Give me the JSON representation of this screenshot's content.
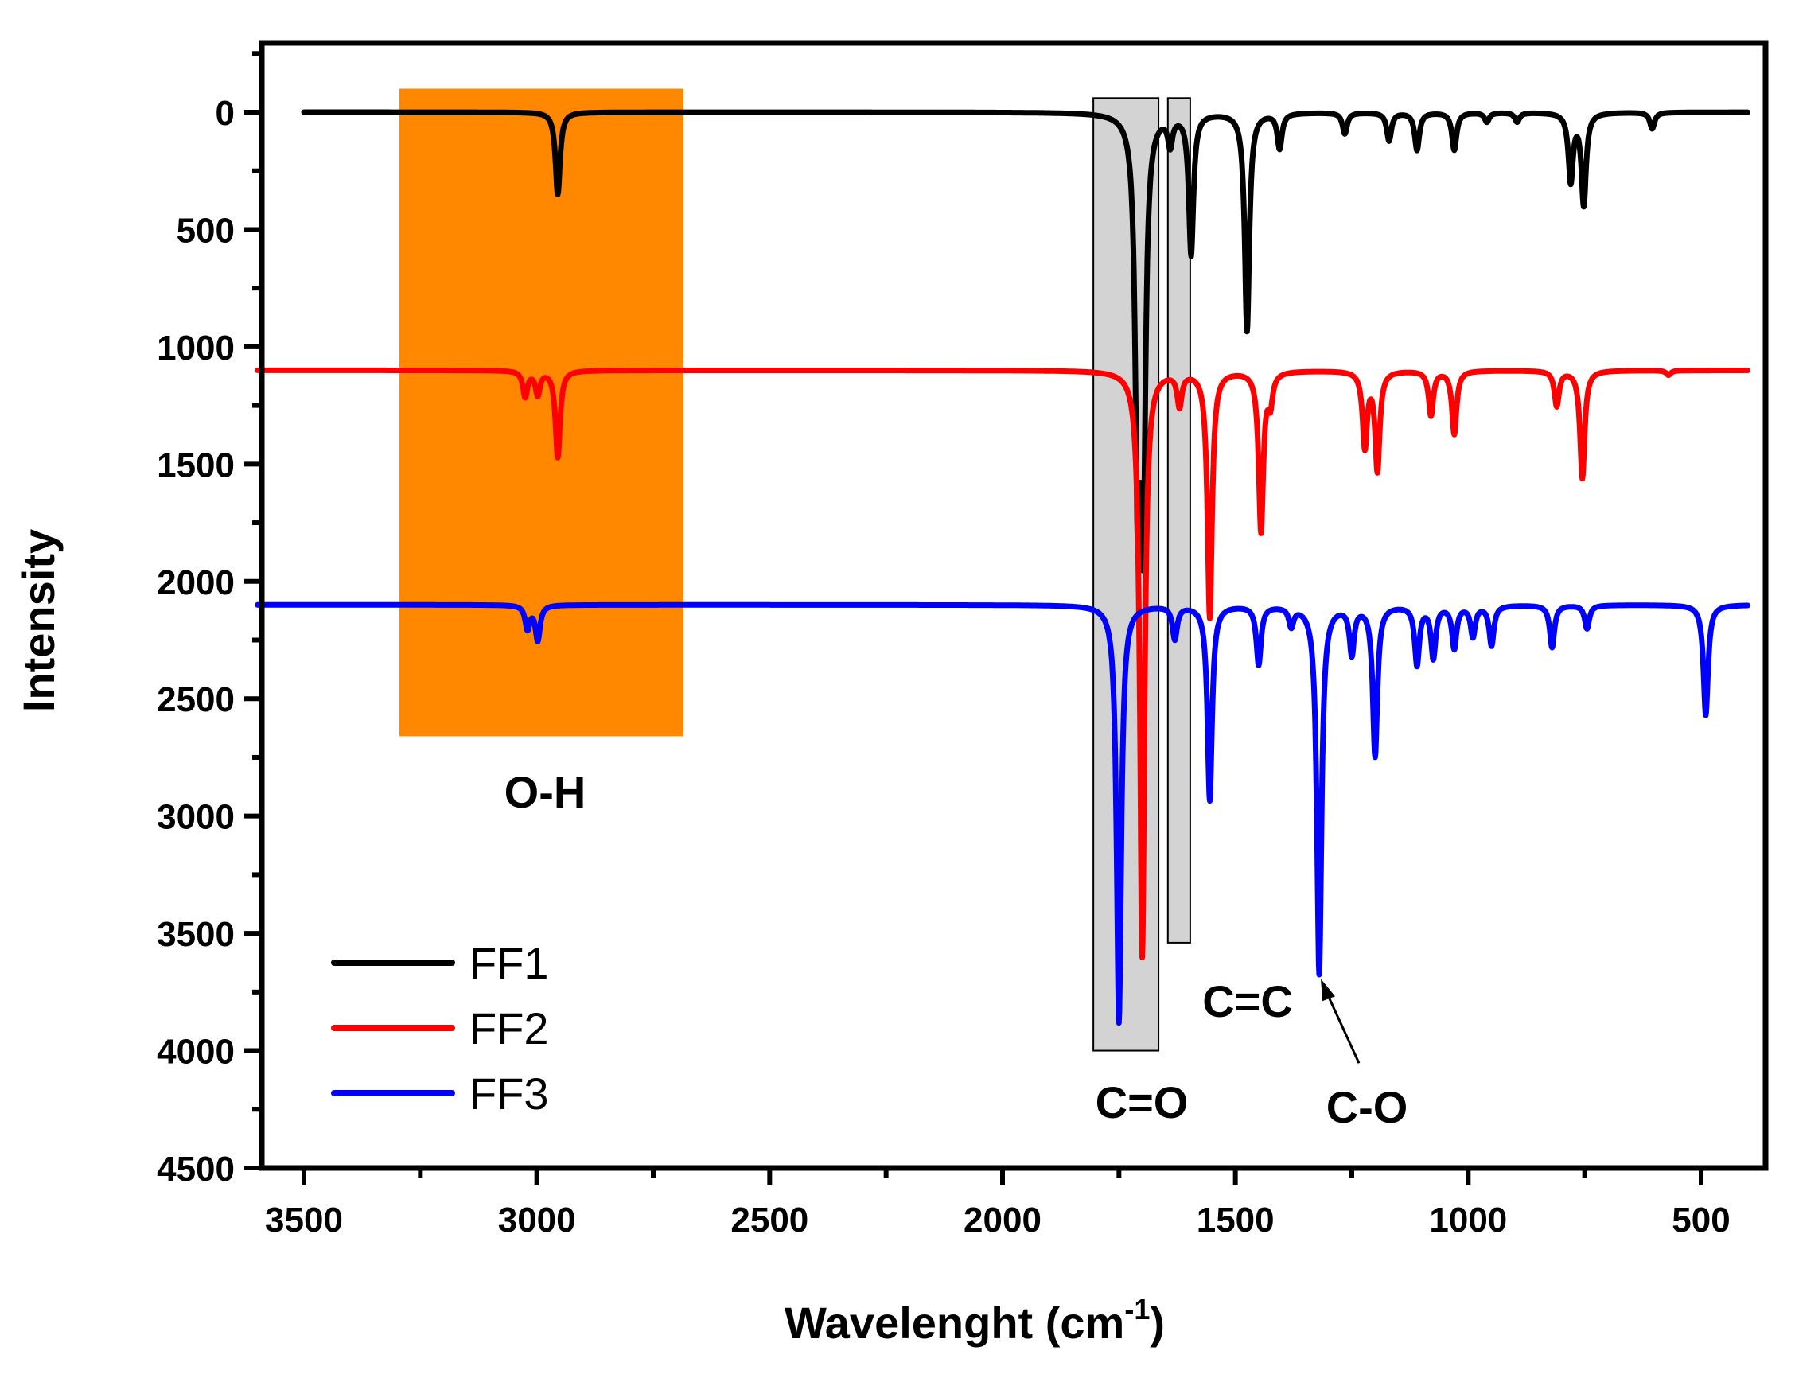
{
  "chart_data": {
    "type": "line",
    "title": "",
    "xlabel": "Wavelenght (cm",
    "xlabel_superscript": "-1",
    "xlabel_suffix": ")",
    "ylabel": "Intensity",
    "xlim": [
      3600,
      400
    ],
    "ylim": [
      4500,
      -300
    ],
    "x_reversed": true,
    "y_reversed": true,
    "x_ticks": [
      3500,
      3000,
      2500,
      2000,
      1500,
      1000,
      500
    ],
    "x_tick_labels": [
      "3500",
      "3000",
      "2500",
      "2000",
      "1500",
      "1000",
      "500"
    ],
    "y_ticks": [
      0,
      500,
      1000,
      1500,
      2000,
      2500,
      3000,
      3500,
      4000,
      4500
    ],
    "y_tick_labels": [
      "0",
      "500",
      "1000",
      "1500",
      "2000",
      "2500",
      "3000",
      "3500",
      "4000",
      "4500"
    ],
    "legend_position": "bottom-left",
    "series": [
      {
        "name": "FF1",
        "color": "#000000",
        "baseline": 0,
        "x_start": 3500,
        "peaks": [
          {
            "x": 2955,
            "y": 350
          },
          {
            "x": 1710,
            "y": 1500
          },
          {
            "x": 1698,
            "y": 1650
          },
          {
            "x": 1595,
            "y": 600
          },
          {
            "x": 1640,
            "y": 120
          },
          {
            "x": 1475,
            "y": 930
          },
          {
            "x": 1405,
            "y": 150
          },
          {
            "x": 1265,
            "y": 90
          },
          {
            "x": 1170,
            "y": 120
          },
          {
            "x": 1110,
            "y": 160
          },
          {
            "x": 1030,
            "y": 160
          },
          {
            "x": 960,
            "y": 40
          },
          {
            "x": 895,
            "y": 40
          },
          {
            "x": 780,
            "y": 290
          },
          {
            "x": 752,
            "y": 390
          },
          {
            "x": 605,
            "y": 70
          }
        ]
      },
      {
        "name": "FF2",
        "color": "#ff0000",
        "baseline": 1100,
        "x_start": 3600,
        "peaks": [
          {
            "x": 3025,
            "y": 1210
          },
          {
            "x": 2998,
            "y": 1200
          },
          {
            "x": 2955,
            "y": 1470
          },
          {
            "x": 1700,
            "y": 3600
          },
          {
            "x": 1620,
            "y": 1240
          },
          {
            "x": 1555,
            "y": 2150
          },
          {
            "x": 1445,
            "y": 1780
          },
          {
            "x": 1425,
            "y": 1220
          },
          {
            "x": 1222,
            "y": 1420
          },
          {
            "x": 1195,
            "y": 1520
          },
          {
            "x": 1080,
            "y": 1290
          },
          {
            "x": 1030,
            "y": 1370
          },
          {
            "x": 810,
            "y": 1250
          },
          {
            "x": 755,
            "y": 1560
          },
          {
            "x": 570,
            "y": 1120
          }
        ]
      },
      {
        "name": "FF3",
        "color": "#0000ff",
        "baseline": 2100,
        "x_start": 3600,
        "peaks": [
          {
            "x": 3020,
            "y": 2200
          },
          {
            "x": 2998,
            "y": 2250
          },
          {
            "x": 1750,
            "y": 3880
          },
          {
            "x": 1630,
            "y": 2240
          },
          {
            "x": 1555,
            "y": 2930
          },
          {
            "x": 1450,
            "y": 2350
          },
          {
            "x": 1380,
            "y": 2180
          },
          {
            "x": 1320,
            "y": 3670
          },
          {
            "x": 1250,
            "y": 2300
          },
          {
            "x": 1200,
            "y": 2740
          },
          {
            "x": 1110,
            "y": 2350
          },
          {
            "x": 1075,
            "y": 2320
          },
          {
            "x": 1030,
            "y": 2280
          },
          {
            "x": 990,
            "y": 2230
          },
          {
            "x": 950,
            "y": 2270
          },
          {
            "x": 820,
            "y": 2280
          },
          {
            "x": 745,
            "y": 2200
          },
          {
            "x": 490,
            "y": 2570
          }
        ]
      }
    ],
    "regions": [
      {
        "label": "O-H",
        "x_from": 3295,
        "x_to": 2685,
        "y_from": -100,
        "y_to": 2660,
        "color": "#ff8800"
      },
      {
        "label": "C=O",
        "x_from": 1805,
        "x_to": 1665,
        "y_from": -60,
        "y_to": 4000,
        "color": "#d3d3d3"
      },
      {
        "label": "C=C",
        "x_from": 1645,
        "x_to": 1597,
        "y_from": -60,
        "y_to": 3540,
        "color": "#d3d3d3"
      }
    ],
    "annotations": [
      {
        "text": "C-O",
        "target_x": 1320,
        "target_y": 3680
      }
    ]
  }
}
